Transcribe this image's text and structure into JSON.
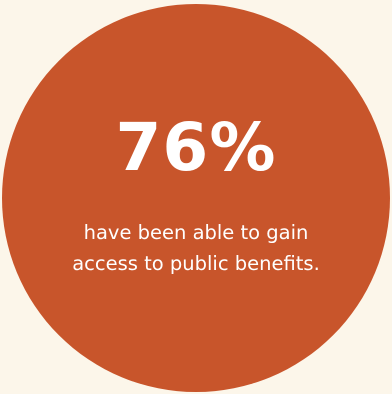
{
  "colors": {
    "background": "#fcf6ea",
    "circle": "#c8552b",
    "text": "#ffffff"
  },
  "stat": {
    "value": "76%"
  },
  "caption": {
    "line1": "have been able to gain",
    "line2": "access to public benefits."
  }
}
